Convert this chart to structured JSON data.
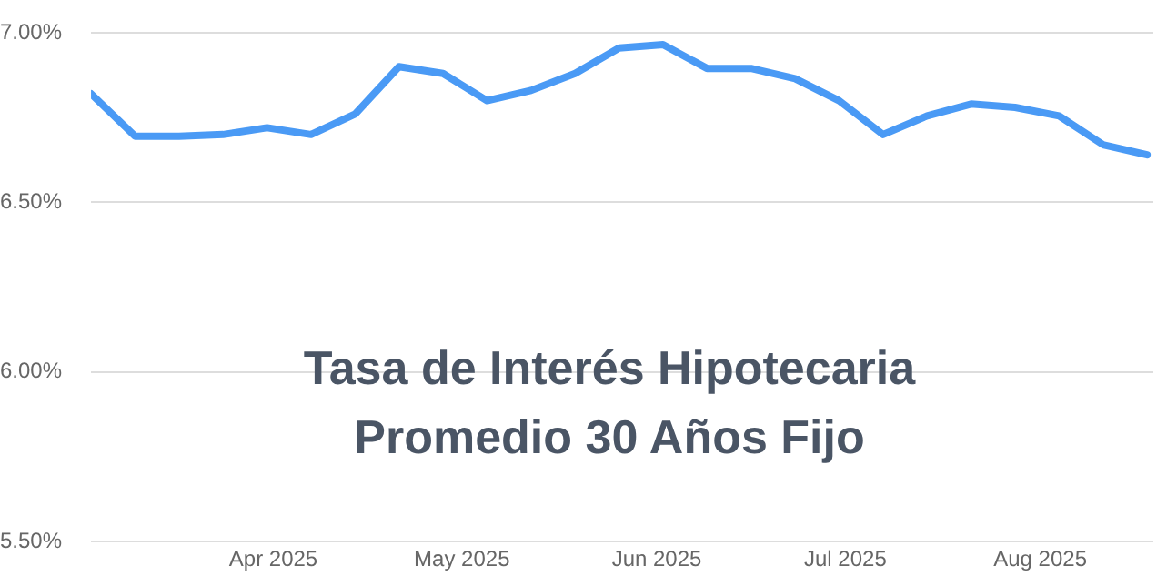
{
  "chart_data": {
    "type": "line",
    "title": "Tasa de Interés Hipotecaria Promedio 30 Años Fijo",
    "x": [
      "2025-03-03",
      "2025-03-10",
      "2025-03-17",
      "2025-03-24",
      "2025-03-31",
      "2025-04-07",
      "2025-04-14",
      "2025-04-21",
      "2025-04-28",
      "2025-05-05",
      "2025-05-12",
      "2025-05-19",
      "2025-05-26",
      "2025-06-02",
      "2025-06-09",
      "2025-06-16",
      "2025-06-23",
      "2025-06-30",
      "2025-07-07",
      "2025-07-14",
      "2025-07-21",
      "2025-07-28",
      "2025-08-04",
      "2025-08-11",
      "2025-08-18"
    ],
    "series": [
      {
        "color": "#4a9af5",
        "values": [
          6.82,
          6.695,
          6.695,
          6.7,
          6.72,
          6.7,
          6.76,
          6.9,
          6.88,
          6.8,
          6.83,
          6.88,
          6.955,
          6.965,
          6.895,
          6.895,
          6.865,
          6.8,
          6.7,
          6.755,
          6.79,
          6.78,
          6.755,
          6.67,
          6.64
        ]
      }
    ],
    "xlim": [
      "2025-03-03",
      "2025-08-19"
    ],
    "xticks": [
      {
        "value": "2025-04-01",
        "label": "Apr 2025"
      },
      {
        "value": "2025-05-01",
        "label": "May 2025"
      },
      {
        "value": "2025-06-01",
        "label": "Jun 2025"
      },
      {
        "value": "2025-07-01",
        "label": "Jul 2025"
      },
      {
        "value": "2025-08-01",
        "label": "Aug 2025"
      }
    ],
    "ylim": [
      5.5,
      7
    ],
    "yticks": [
      {
        "value": 5.5,
        "label": "5.50%"
      },
      {
        "value": 6,
        "label": "6.00%"
      },
      {
        "value": 6.5,
        "label": "6.50%"
      },
      {
        "value": 7,
        "label": "7.00%"
      }
    ],
    "grid": "y",
    "legend": false,
    "marker": "none",
    "line_style": "solid"
  }
}
